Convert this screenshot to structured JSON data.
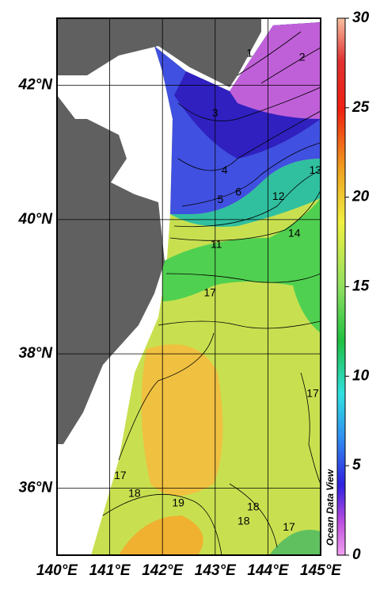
{
  "map": {
    "xlim": [
      140,
      145
    ],
    "ylim": [
      35,
      43
    ],
    "xticks": [
      {
        "value": 140,
        "label": "140°E"
      },
      {
        "value": 141,
        "label": "141°E"
      },
      {
        "value": 142,
        "label": "142°E"
      },
      {
        "value": 143,
        "label": "143°E"
      },
      {
        "value": 144,
        "label": "144°E"
      },
      {
        "value": 145,
        "label": "145°E"
      }
    ],
    "yticks": [
      {
        "value": 36,
        "label": "36°N"
      },
      {
        "value": 38,
        "label": "38°N"
      },
      {
        "value": 40,
        "label": "40°N"
      },
      {
        "value": 42,
        "label": "42°N"
      }
    ],
    "colorbar": {
      "lim": [
        0,
        30
      ],
      "ticks": [
        0,
        5,
        10,
        15,
        20,
        25,
        30
      ]
    },
    "contour_labels": [
      {
        "value": 1,
        "lon": 143.65,
        "lat": 42.47
      },
      {
        "value": 2,
        "lon": 144.65,
        "lat": 42.41
      },
      {
        "value": 3,
        "lon": 143.0,
        "lat": 41.58
      },
      {
        "value": 4,
        "lon": 143.18,
        "lat": 40.73
      },
      {
        "value": 5,
        "lon": 143.1,
        "lat": 40.29
      },
      {
        "value": 6,
        "lon": 143.44,
        "lat": 40.4
      },
      {
        "value": 11,
        "lon": 143.02,
        "lat": 39.62
      },
      {
        "value": 12,
        "lon": 144.2,
        "lat": 40.34
      },
      {
        "value": 13,
        "lon": 144.9,
        "lat": 40.73
      },
      {
        "value": 14,
        "lon": 144.5,
        "lat": 39.79
      },
      {
        "value": 17,
        "lon": 142.9,
        "lat": 38.9
      },
      {
        "value": 17,
        "lon": 144.85,
        "lat": 37.4
      },
      {
        "value": 17,
        "lon": 141.2,
        "lat": 36.18
      },
      {
        "value": 18,
        "lon": 141.47,
        "lat": 35.91
      },
      {
        "value": 19,
        "lon": 142.3,
        "lat": 35.77
      },
      {
        "value": 18,
        "lon": 143.72,
        "lat": 35.71
      },
      {
        "value": 18,
        "lon": 143.54,
        "lat": 35.5
      },
      {
        "value": 17,
        "lon": 144.4,
        "lat": 35.41
      }
    ],
    "watermark": "Ocean Data View"
  }
}
